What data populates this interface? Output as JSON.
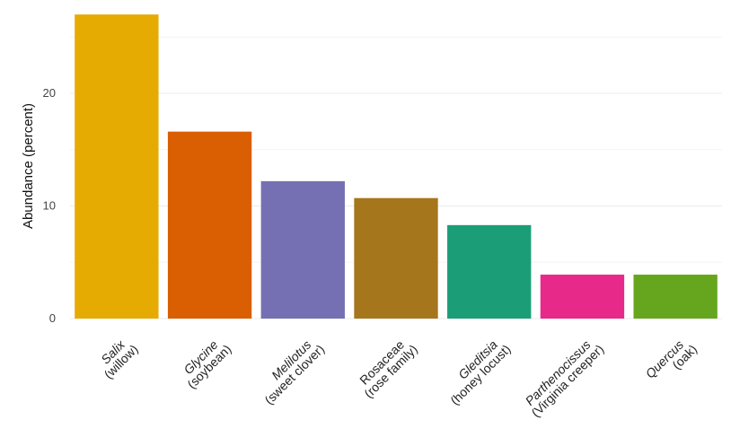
{
  "chart_data": {
    "type": "bar",
    "title": "",
    "xlabel": "",
    "ylabel": "Abundance (percent)",
    "ylim": [
      0,
      27.5
    ],
    "yticks": [
      0,
      10,
      20
    ],
    "grid": true,
    "legend": "none",
    "categories": [
      {
        "genus": "Salix",
        "common": "(willow)"
      },
      {
        "genus": "Glycine",
        "common": "(soybean)"
      },
      {
        "genus": "Melilotus",
        "common": "(sweet clover)"
      },
      {
        "genus": "Rosaceae",
        "common": "(rose family)",
        "italic": false
      },
      {
        "genus": "Gleditsia",
        "common": "(honey locust)"
      },
      {
        "genus": "Parthenocissus",
        "common": "(Virginia creeper)"
      },
      {
        "genus": "Quercus",
        "common": "(oak)"
      }
    ],
    "values": [
      27.0,
      16.6,
      12.2,
      10.7,
      8.3,
      3.9,
      3.9
    ],
    "colors": [
      "#E6AB02",
      "#D95F02",
      "#7570B3",
      "#A6761D",
      "#1B9E77",
      "#E7298A",
      "#66A61E"
    ]
  }
}
